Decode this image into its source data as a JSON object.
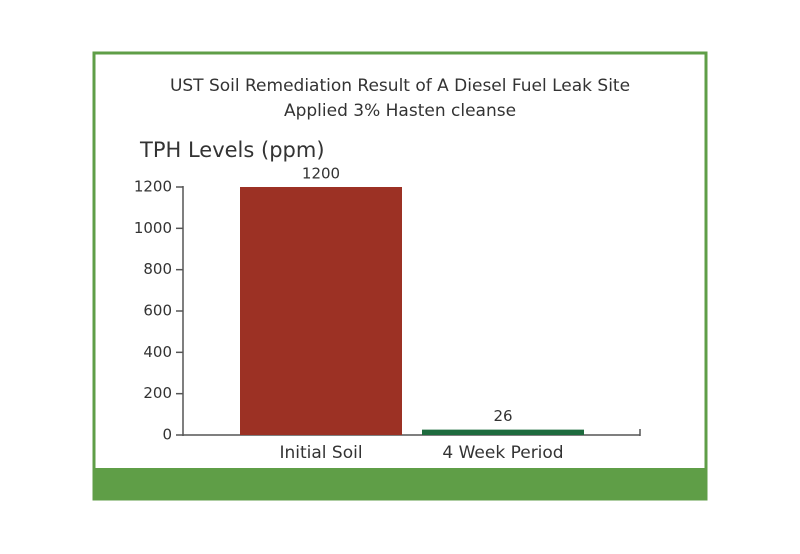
{
  "chart_data": {
    "type": "bar",
    "title": "UST Soil Remediation Result of A Diesel Fuel Leak Site",
    "subtitle": "Applied 3% Hasten cleanse",
    "y_label": "TPH Levels (ppm)",
    "categories": [
      "Initial Soil",
      "4 Week Period"
    ],
    "values": [
      1200,
      26
    ],
    "colors": [
      "#9c3124",
      "#1e6b3e"
    ],
    "ylim": [
      0,
      1200
    ],
    "yticks": [
      0,
      200,
      400,
      600,
      800,
      1000,
      1200
    ]
  }
}
